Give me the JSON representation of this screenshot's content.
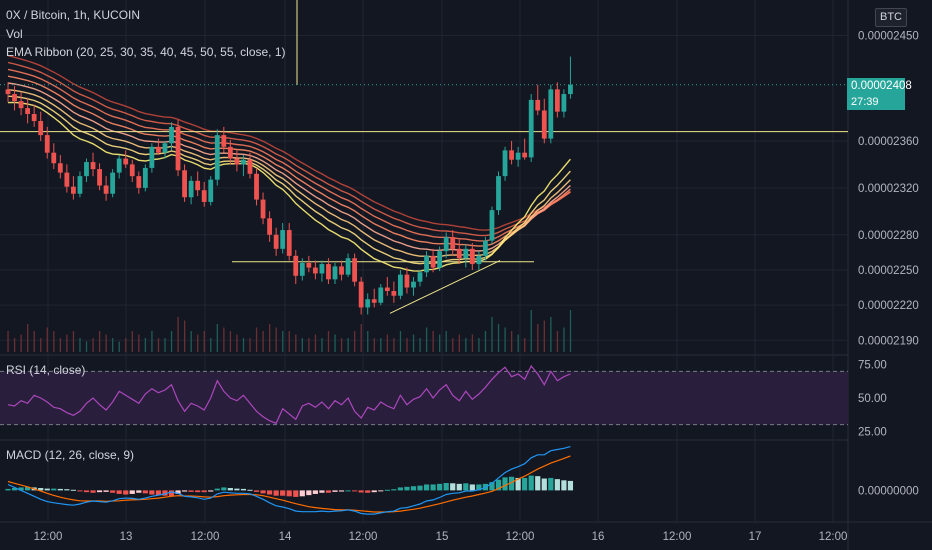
{
  "header": {
    "symbol_line": "0X / Bitcoin, 1h, KUCOIN",
    "volume_label": "Vol",
    "ribbon_label": "EMA Ribbon (20, 25, 30, 35, 40, 45, 50, 55, close, 1)",
    "currency_badge": "BTC"
  },
  "last_price": {
    "value": "0.00002408",
    "countdown": "27:39"
  },
  "colors": {
    "background": "#131722",
    "up": "#26a69a",
    "down": "#ef5350",
    "rsi_line": "#ab47bc",
    "rsi_band": "#2a1e3d",
    "macd_line": "#2196f3",
    "signal_line": "#ff6d00",
    "horizontal_line": "#f0e68c"
  },
  "chart_data": [
    {
      "type": "candlestick",
      "title": "0X / Bitcoin, 1h, KUCOIN",
      "y_ticks": [
        "0.00002450",
        "0.00002360",
        "0.00002320",
        "0.00002280",
        "0.00002250",
        "0.00002220",
        "0.00002190"
      ],
      "ylim": [
        2.18e-05,
        2.47e-05
      ],
      "x_ticks": [
        "12:00",
        "13",
        "12:00",
        "14",
        "12:00",
        "15",
        "12:00",
        "16",
        "12:00",
        "17",
        "12:00"
      ],
      "horizontal_line_value": 2.368e-05,
      "last_value": 2.408e-05,
      "candles": [
        [
          2404,
          2410,
          2393,
          2400
        ],
        [
          2400,
          2407,
          2386,
          2394
        ],
        [
          2394,
          2402,
          2382,
          2388
        ],
        [
          2388,
          2397,
          2375,
          2383
        ],
        [
          2383,
          2391,
          2372,
          2377
        ],
        [
          2377,
          2385,
          2360,
          2365
        ],
        [
          2365,
          2372,
          2345,
          2350
        ],
        [
          2350,
          2358,
          2336,
          2341
        ],
        [
          2341,
          2348,
          2328,
          2333
        ],
        [
          2333,
          2340,
          2316,
          2321
        ],
        [
          2321,
          2330,
          2310,
          2315
        ],
        [
          2315,
          2334,
          2312,
          2330
        ],
        [
          2330,
          2345,
          2325,
          2342
        ],
        [
          2342,
          2350,
          2330,
          2336
        ],
        [
          2336,
          2341,
          2318,
          2322
        ],
        [
          2322,
          2330,
          2309,
          2315
        ],
        [
          2315,
          2336,
          2312,
          2333
        ],
        [
          2333,
          2348,
          2328,
          2345
        ],
        [
          2345,
          2352,
          2337,
          2340
        ],
        [
          2340,
          2344,
          2325,
          2330
        ],
        [
          2330,
          2334,
          2315,
          2320
        ],
        [
          2320,
          2340,
          2317,
          2337
        ],
        [
          2337,
          2358,
          2333,
          2355
        ],
        [
          2355,
          2362,
          2348,
          2350
        ],
        [
          2350,
          2360,
          2345,
          2358
        ],
        [
          2358,
          2376,
          2352,
          2372
        ],
        [
          2372,
          2378,
          2330,
          2335
        ],
        [
          2335,
          2340,
          2308,
          2312
        ],
        [
          2312,
          2330,
          2306,
          2326
        ],
        [
          2326,
          2334,
          2313,
          2318
        ],
        [
          2318,
          2325,
          2304,
          2308
        ],
        [
          2308,
          2330,
          2305,
          2327
        ],
        [
          2327,
          2370,
          2322,
          2365
        ],
        [
          2365,
          2372,
          2350,
          2355
        ],
        [
          2355,
          2361,
          2340,
          2345
        ],
        [
          2345,
          2352,
          2334,
          2340
        ],
        [
          2340,
          2348,
          2330,
          2344
        ],
        [
          2344,
          2350,
          2328,
          2332
        ],
        [
          2332,
          2337,
          2305,
          2310
        ],
        [
          2310,
          2316,
          2289,
          2294
        ],
        [
          2294,
          2300,
          2274,
          2280
        ],
        [
          2280,
          2286,
          2262,
          2268
        ],
        [
          2268,
          2290,
          2264,
          2284
        ],
        [
          2284,
          2290,
          2258,
          2262
        ],
        [
          2262,
          2267,
          2238,
          2245
        ],
        [
          2245,
          2260,
          2241,
          2256
        ],
        [
          2256,
          2262,
          2248,
          2252
        ],
        [
          2252,
          2258,
          2242,
          2247
        ],
        [
          2247,
          2258,
          2240,
          2255
        ],
        [
          2255,
          2260,
          2238,
          2242
        ],
        [
          2242,
          2256,
          2238,
          2253
        ],
        [
          2253,
          2258,
          2241,
          2246
        ],
        [
          2246,
          2264,
          2244,
          2260
        ],
        [
          2260,
          2264,
          2236,
          2240
        ],
        [
          2240,
          2244,
          2212,
          2218
        ],
        [
          2218,
          2230,
          2212,
          2225
        ],
        [
          2225,
          2234,
          2218,
          2222
        ],
        [
          2222,
          2238,
          2220,
          2235
        ],
        [
          2235,
          2244,
          2228,
          2232
        ],
        [
          2232,
          2240,
          2222,
          2228
        ],
        [
          2228,
          2250,
          2225,
          2246
        ],
        [
          2246,
          2252,
          2230,
          2235
        ],
        [
          2235,
          2244,
          2228,
          2240
        ],
        [
          2240,
          2250,
          2236,
          2248
        ],
        [
          2248,
          2266,
          2244,
          2262
        ],
        [
          2262,
          2268,
          2248,
          2252
        ],
        [
          2252,
          2270,
          2249,
          2266
        ],
        [
          2266,
          2282,
          2260,
          2278
        ],
        [
          2278,
          2284,
          2262,
          2268
        ],
        [
          2268,
          2276,
          2255,
          2260
        ],
        [
          2260,
          2272,
          2252,
          2268
        ],
        [
          2268,
          2273,
          2250,
          2255
        ],
        [
          2255,
          2266,
          2250,
          2262
        ],
        [
          2262,
          2278,
          2258,
          2275
        ],
        [
          2275,
          2304,
          2272,
          2301
        ],
        [
          2301,
          2334,
          2297,
          2330
        ],
        [
          2330,
          2355,
          2326,
          2352
        ],
        [
          2352,
          2360,
          2340,
          2344
        ],
        [
          2344,
          2355,
          2338,
          2350
        ],
        [
          2350,
          2362,
          2344,
          2346
        ],
        [
          2346,
          2400,
          2342,
          2395
        ],
        [
          2395,
          2408,
          2382,
          2386
        ],
        [
          2386,
          2396,
          2358,
          2362
        ],
        [
          2362,
          2408,
          2358,
          2404
        ],
        [
          2404,
          2410,
          2380,
          2385
        ],
        [
          2385,
          2404,
          2380,
          2400
        ],
        [
          2400,
          2432,
          2396,
          2408
        ]
      ],
      "volume": [
        0.3,
        0.2,
        0.25,
        0.4,
        0.3,
        0.2,
        0.35,
        0.3,
        0.2,
        0.25,
        0.3,
        0.2,
        0.15,
        0.2,
        0.3,
        0.25,
        0.2,
        0.15,
        0.2,
        0.3,
        0.25,
        0.2,
        0.3,
        0.2,
        0.2,
        0.3,
        0.5,
        0.45,
        0.3,
        0.25,
        0.3,
        0.2,
        0.4,
        0.35,
        0.3,
        0.25,
        0.2,
        0.2,
        0.35,
        0.3,
        0.4,
        0.35,
        0.3,
        0.3,
        0.25,
        0.2,
        0.2,
        0.25,
        0.2,
        0.3,
        0.25,
        0.2,
        0.2,
        0.3,
        0.4,
        0.3,
        0.2,
        0.2,
        0.25,
        0.2,
        0.3,
        0.2,
        0.25,
        0.2,
        0.35,
        0.3,
        0.25,
        0.3,
        0.2,
        0.25,
        0.2,
        0.25,
        0.2,
        0.3,
        0.5,
        0.4,
        0.35,
        0.3,
        0.25,
        0.2,
        0.6,
        0.4,
        0.45,
        0.5,
        0.3,
        0.35,
        0.6
      ]
    },
    {
      "type": "line",
      "title": "RSI (14, close)",
      "y_ticks": [
        "75.00",
        "50.00",
        "25.00"
      ],
      "ylim": [
        20,
        80
      ],
      "bands": [
        30,
        70
      ],
      "values": [
        45,
        44,
        48,
        46,
        52,
        50,
        47,
        43,
        42,
        39,
        37,
        40,
        46,
        50,
        45,
        41,
        47,
        55,
        52,
        49,
        46,
        53,
        57,
        54,
        56,
        60,
        48,
        40,
        46,
        44,
        41,
        50,
        63,
        55,
        50,
        48,
        52,
        46,
        40,
        36,
        33,
        31,
        42,
        38,
        34,
        44,
        46,
        43,
        47,
        42,
        48,
        45,
        50,
        40,
        35,
        43,
        41,
        47,
        44,
        42,
        52,
        45,
        49,
        51,
        57,
        50,
        56,
        60,
        52,
        48,
        55,
        49,
        53,
        58,
        64,
        69,
        73,
        66,
        68,
        64,
        74,
        68,
        60,
        70,
        63,
        66,
        68
      ]
    },
    {
      "type": "macd",
      "title": "MACD (12, 26, close, 9)",
      "y_ticks": [
        "0.00000000"
      ],
      "ylim": [
        -1.0,
        1.6
      ],
      "macd": [
        0.2,
        0.1,
        0.0,
        -0.1,
        -0.2,
        -0.3,
        -0.38,
        -0.42,
        -0.45,
        -0.48,
        -0.5,
        -0.46,
        -0.4,
        -0.36,
        -0.38,
        -0.4,
        -0.35,
        -0.28,
        -0.26,
        -0.27,
        -0.3,
        -0.26,
        -0.2,
        -0.16,
        -0.12,
        -0.05,
        -0.1,
        -0.2,
        -0.22,
        -0.25,
        -0.3,
        -0.26,
        -0.12,
        -0.06,
        -0.08,
        -0.1,
        -0.1,
        -0.12,
        -0.2,
        -0.3,
        -0.42,
        -0.52,
        -0.56,
        -0.62,
        -0.7,
        -0.72,
        -0.72,
        -0.72,
        -0.7,
        -0.72,
        -0.7,
        -0.69,
        -0.66,
        -0.7,
        -0.78,
        -0.8,
        -0.8,
        -0.76,
        -0.72,
        -0.7,
        -0.6,
        -0.58,
        -0.52,
        -0.46,
        -0.36,
        -0.32,
        -0.24,
        -0.14,
        -0.1,
        -0.08,
        -0.02,
        -0.02,
        0.02,
        0.1,
        0.24,
        0.42,
        0.6,
        0.72,
        0.8,
        0.9,
        1.1,
        1.2,
        1.2,
        1.34,
        1.38,
        1.42,
        1.48
      ],
      "signal": [
        0.3,
        0.24,
        0.18,
        0.12,
        0.05,
        -0.02,
        -0.1,
        -0.17,
        -0.23,
        -0.28,
        -0.32,
        -0.35,
        -0.36,
        -0.36,
        -0.36,
        -0.37,
        -0.36,
        -0.35,
        -0.33,
        -0.32,
        -0.31,
        -0.3,
        -0.28,
        -0.26,
        -0.23,
        -0.2,
        -0.18,
        -0.19,
        -0.19,
        -0.2,
        -0.22,
        -0.23,
        -0.21,
        -0.18,
        -0.16,
        -0.15,
        -0.14,
        -0.14,
        -0.15,
        -0.18,
        -0.23,
        -0.28,
        -0.33,
        -0.39,
        -0.45,
        -0.5,
        -0.55,
        -0.58,
        -0.61,
        -0.63,
        -0.65,
        -0.66,
        -0.66,
        -0.67,
        -0.69,
        -0.71,
        -0.73,
        -0.73,
        -0.73,
        -0.72,
        -0.7,
        -0.67,
        -0.64,
        -0.6,
        -0.55,
        -0.5,
        -0.45,
        -0.39,
        -0.33,
        -0.28,
        -0.23,
        -0.19,
        -0.14,
        -0.09,
        -0.03,
        0.06,
        0.16,
        0.27,
        0.38,
        0.48,
        0.6,
        0.72,
        0.82,
        0.92,
        1.0,
        1.08,
        1.16
      ],
      "hist": [
        0.05,
        0.08,
        0.1,
        0.12,
        0.1,
        0.08,
        0.06,
        0.06,
        0.05,
        0.04,
        0.02,
        -0.03,
        -0.06,
        -0.08,
        -0.06,
        -0.05,
        -0.08,
        -0.12,
        -0.14,
        -0.12,
        -0.08,
        -0.1,
        -0.14,
        -0.16,
        -0.18,
        -0.2,
        -0.12,
        -0.04,
        -0.05,
        -0.06,
        -0.06,
        -0.04,
        0.06,
        0.1,
        0.08,
        0.06,
        0.05,
        0.02,
        -0.05,
        -0.1,
        -0.14,
        -0.18,
        -0.18,
        -0.2,
        -0.22,
        -0.2,
        -0.16,
        -0.12,
        -0.08,
        -0.08,
        -0.05,
        -0.04,
        0.0,
        -0.03,
        -0.07,
        -0.08,
        -0.06,
        -0.02,
        0.02,
        0.04,
        0.1,
        0.12,
        0.14,
        0.16,
        0.2,
        0.2,
        0.22,
        0.25,
        0.24,
        0.22,
        0.24,
        0.2,
        0.2,
        0.22,
        0.28,
        0.36,
        0.44,
        0.46,
        0.42,
        0.42,
        0.5,
        0.48,
        0.4,
        0.42,
        0.38,
        0.34,
        0.32
      ]
    }
  ]
}
